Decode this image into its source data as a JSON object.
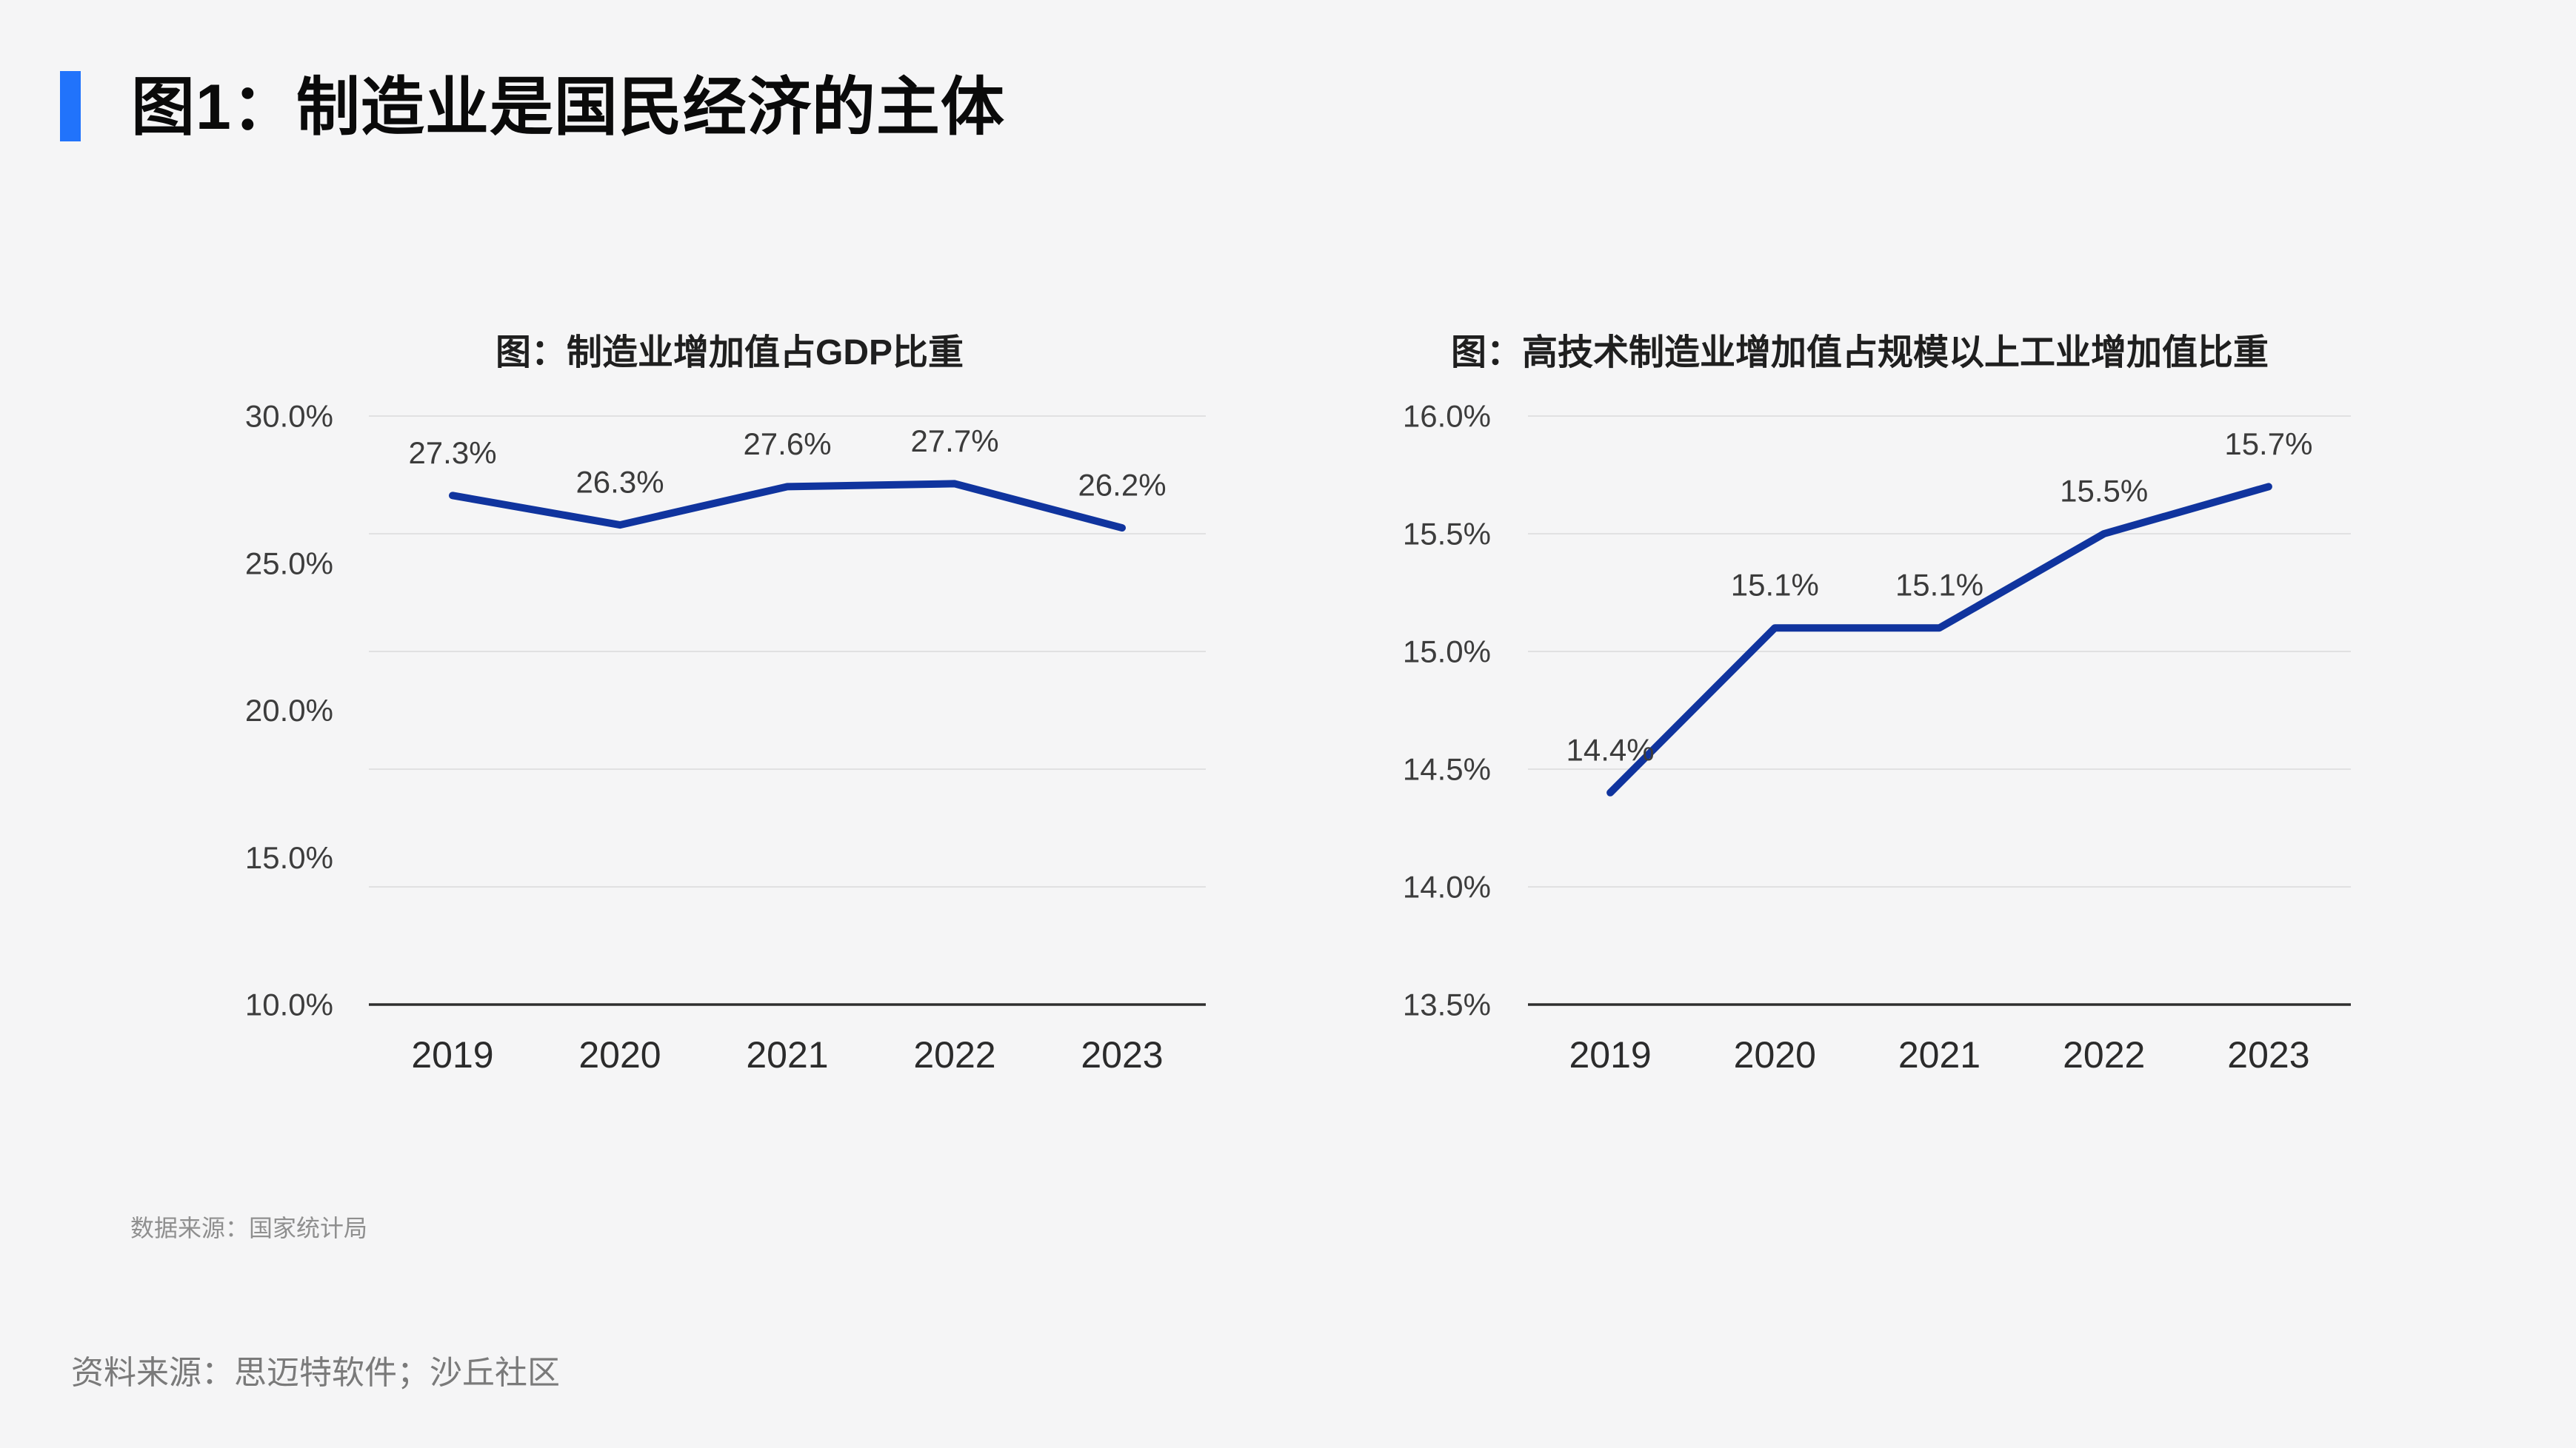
{
  "page": {
    "background": "#f5f5f6"
  },
  "header": {
    "title": "图1：制造业是国民经济的主体",
    "accent_color": "#2173fb"
  },
  "notes": {
    "data_source": "数据来源：国家统计局",
    "source": "资料来源：思迈特软件；沙丘社区"
  },
  "chart_style": {
    "line_color": "#10349e",
    "grid_color": "#e1e1e2",
    "axis_color": "#2e2e2e",
    "tick_label_color": "#3d3d3d",
    "data_label_color": "#3b3b3b",
    "year_label_color": "#2b2b2b"
  },
  "chart_data": [
    {
      "type": "line",
      "title": "图：制造业增加值占GDP比重",
      "categories": [
        "2019",
        "2020",
        "2021",
        "2022",
        "2023"
      ],
      "values": [
        27.3,
        26.3,
        27.6,
        27.7,
        26.2
      ],
      "value_labels": [
        "27.3%",
        "26.3%",
        "27.6%",
        "27.7%",
        "26.2%"
      ],
      "ylim": [
        10.0,
        30.0
      ],
      "ytick_labels": [
        "30.0%",
        "25.0%",
        "20.0%",
        "15.0%",
        "10.0%"
      ],
      "grid": true,
      "legend": "none"
    },
    {
      "type": "line",
      "title": "图：高技术制造业增加值占规模以上工业增加值比重",
      "categories": [
        "2019",
        "2020",
        "2021",
        "2022",
        "2023"
      ],
      "values": [
        14.4,
        15.1,
        15.1,
        15.5,
        15.7
      ],
      "value_labels": [
        "14.4%",
        "15.1%",
        "15.1%",
        "15.5%",
        "15.7%"
      ],
      "ylim": [
        13.5,
        16.0
      ],
      "ytick_labels": [
        "16.0%",
        "15.5%",
        "15.0%",
        "14.5%",
        "14.0%",
        "13.5%"
      ],
      "grid": true,
      "legend": "none"
    }
  ]
}
